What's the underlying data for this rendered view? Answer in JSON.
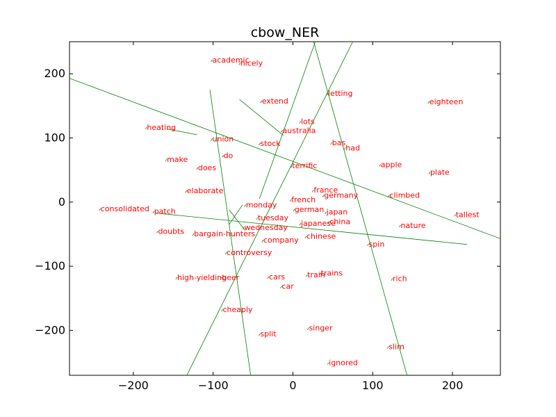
{
  "chart_data": {
    "type": "scatter",
    "title": "cbow_NER",
    "xlabel": "",
    "ylabel": "",
    "xlim": [
      -280,
      260
    ],
    "ylim": [
      -270,
      250
    ],
    "xticks": [
      -200,
      -100,
      0,
      100,
      200
    ],
    "yticks": [
      -200,
      -100,
      0,
      100,
      200
    ],
    "grid": false,
    "label_color": "#ff0000",
    "line_color": "#008000",
    "frame_color": "#000000",
    "points": [
      {
        "label": "academic",
        "x": -101,
        "y": 222
      },
      {
        "label": "nicely",
        "x": -66,
        "y": 217
      },
      {
        "label": "letting",
        "x": 44,
        "y": 170
      },
      {
        "label": "extend",
        "x": -39,
        "y": 158
      },
      {
        "label": "eighteen",
        "x": 171,
        "y": 157
      },
      {
        "label": "lots",
        "x": 10,
        "y": 126
      },
      {
        "label": "heating",
        "x": -183,
        "y": 117
      },
      {
        "label": "australia",
        "x": -13,
        "y": 112
      },
      {
        "label": "union",
        "x": -101,
        "y": 99
      },
      {
        "label": "stock",
        "x": -41,
        "y": 92
      },
      {
        "label": "bas",
        "x": 49,
        "y": 93
      },
      {
        "label": "had",
        "x": 66,
        "y": 85
      },
      {
        "label": "do",
        "x": -87,
        "y": 73
      },
      {
        "label": "make",
        "x": -158,
        "y": 67
      },
      {
        "label": "does",
        "x": -119,
        "y": 54
      },
      {
        "label": "terrific",
        "x": -1,
        "y": 57
      },
      {
        "label": "apple",
        "x": 110,
        "y": 59
      },
      {
        "label": "plate",
        "x": 172,
        "y": 47
      },
      {
        "label": "elaborate",
        "x": -133,
        "y": 18
      },
      {
        "label": "france",
        "x": 26,
        "y": 19
      },
      {
        "label": "germany",
        "x": 39,
        "y": 11
      },
      {
        "label": "climbed",
        "x": 121,
        "y": 11
      },
      {
        "label": "french",
        "x": -2,
        "y": 4
      },
      {
        "label": "monday",
        "x": -59,
        "y": -4
      },
      {
        "label": "consolidated",
        "x": -241,
        "y": -10
      },
      {
        "label": "german",
        "x": 2,
        "y": -11
      },
      {
        "label": "patch",
        "x": -174,
        "y": -14
      },
      {
        "label": "japan",
        "x": 42,
        "y": -15
      },
      {
        "label": "tallest",
        "x": 204,
        "y": -19
      },
      {
        "label": "tuesday",
        "x": -44,
        "y": -24
      },
      {
        "label": "japanese",
        "x": 10,
        "y": -33
      },
      {
        "label": "china",
        "x": 46,
        "y": -30
      },
      {
        "label": "nature",
        "x": 135,
        "y": -36
      },
      {
        "label": "wednesday",
        "x": -61,
        "y": -39
      },
      {
        "label": "doubts",
        "x": -169,
        "y": -45
      },
      {
        "label": "bargain-hunters",
        "x": -124,
        "y": -49
      },
      {
        "label": "chinese",
        "x": 17,
        "y": -53
      },
      {
        "label": "company",
        "x": -37,
        "y": -59
      },
      {
        "label": "spin",
        "x": 95,
        "y": -65
      },
      {
        "label": "controversy",
        "x": -83,
        "y": -78
      },
      {
        "label": "trains",
        "x": 35,
        "y": -110
      },
      {
        "label": "train",
        "x": 18,
        "y": -113
      },
      {
        "label": "cars",
        "x": -30,
        "y": -116
      },
      {
        "label": "high-yielding",
        "x": -145,
        "y": -117
      },
      {
        "label": "beer",
        "x": -89,
        "y": -117
      },
      {
        "label": "rich",
        "x": 125,
        "y": -119
      },
      {
        "label": "car",
        "x": -14,
        "y": -131
      },
      {
        "label": "cheaply",
        "x": -88,
        "y": -167
      },
      {
        "label": "singer",
        "x": 20,
        "y": -196
      },
      {
        "label": "split",
        "x": -41,
        "y": -205
      },
      {
        "label": "slim",
        "x": 120,
        "y": -225
      },
      {
        "label": "ignored",
        "x": 45,
        "y": -250
      }
    ],
    "lines": [
      {
        "from": [
          -280,
          193
        ],
        "to": [
          260,
          -57
        ]
      },
      {
        "from": [
          -104,
          175
        ],
        "to": [
          -53,
          -270
        ]
      },
      {
        "from": [
          -67,
          160
        ],
        "to": [
          -12,
          104
        ]
      },
      {
        "from": [
          -42,
          5
        ],
        "to": [
          28,
          250
        ]
      },
      {
        "from": [
          -133,
          -270
        ],
        "to": [
          75,
          250
        ]
      },
      {
        "from": [
          26,
          250
        ],
        "to": [
          143,
          -270
        ]
      },
      {
        "from": [
          -173,
          -17
        ],
        "to": [
          218,
          -66
        ]
      },
      {
        "from": [
          -158,
          114
        ],
        "to": [
          -120,
          105
        ]
      },
      {
        "from": [
          -80,
          -12
        ],
        "to": [
          -60,
          -44
        ]
      },
      {
        "from": [
          -80,
          -35
        ],
        "to": [
          -63,
          -4
        ]
      }
    ]
  }
}
